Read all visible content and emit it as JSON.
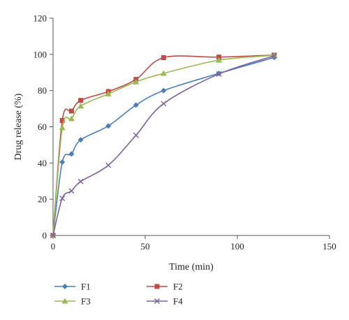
{
  "chart_data": {
    "type": "line",
    "xlabel": "Time (min)",
    "ylabel": "Drug release (%)",
    "xlim": [
      0,
      150
    ],
    "ylim": [
      0,
      120
    ],
    "x_ticks": [
      0,
      50,
      100,
      150
    ],
    "y_ticks": [
      0,
      20,
      40,
      60,
      80,
      100,
      120
    ],
    "grid": false,
    "legend_position": "bottom",
    "series": [
      {
        "name": "F1",
        "color": "#4a7ebb",
        "marker": "diamond",
        "x": [
          0,
          5,
          10,
          15,
          30,
          45,
          60,
          90,
          120
        ],
        "y": [
          0,
          40.5,
          45,
          52.8,
          60.5,
          72,
          80,
          89.5,
          98.3
        ]
      },
      {
        "name": "F2",
        "color": "#be4b48",
        "marker": "square",
        "x": [
          0,
          5,
          10,
          15,
          30,
          45,
          60,
          90,
          120
        ],
        "y": [
          0,
          63.5,
          68.7,
          74.6,
          79.5,
          86.2,
          98.2,
          98.5,
          99.6
        ]
      },
      {
        "name": "F3",
        "color": "#98b954",
        "marker": "triangle",
        "x": [
          0,
          5,
          10,
          15,
          30,
          45,
          60,
          90,
          120
        ],
        "y": [
          0,
          59.5,
          64.5,
          71.5,
          78.2,
          84.8,
          89.5,
          96.8,
          99.5
        ]
      },
      {
        "name": "F4",
        "color": "#7d60a0",
        "marker": "x",
        "x": [
          0,
          5,
          10,
          15,
          30,
          45,
          60,
          90,
          120
        ],
        "y": [
          0,
          20.5,
          24.6,
          29.8,
          38.8,
          55.3,
          72.8,
          89.2,
          99.2
        ]
      }
    ]
  }
}
